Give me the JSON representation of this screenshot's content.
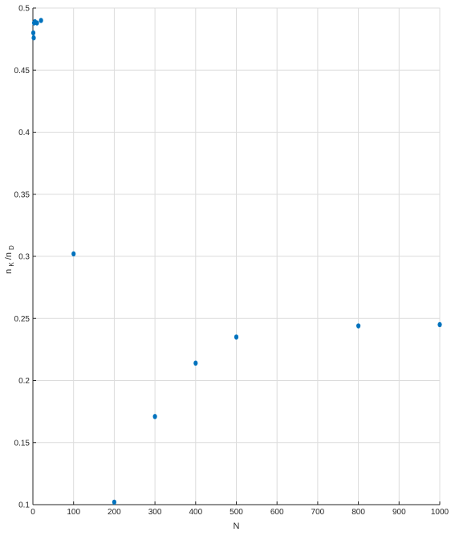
{
  "chart_data": {
    "type": "scatter",
    "title": "",
    "xlabel": "N",
    "ylabel_main": "n",
    "ylabel_sub1": "K",
    "ylabel_sep": "/n",
    "ylabel_sub2": "D",
    "xlim": [
      0,
      1000
    ],
    "ylim": [
      0.1,
      0.5
    ],
    "xticks": [
      0,
      100,
      200,
      300,
      400,
      500,
      600,
      700,
      800,
      900,
      1000
    ],
    "xtick_labels": [
      "0",
      "100",
      "200",
      "300",
      "400",
      "500",
      "600",
      "700",
      "800",
      "900",
      "1000"
    ],
    "yticks": [
      0.1,
      0.15,
      0.2,
      0.25,
      0.3,
      0.35,
      0.4,
      0.45,
      0.5
    ],
    "ytick_labels": [
      "0.1",
      "0.15",
      "0.2",
      "0.25",
      "0.3",
      "0.35",
      "0.4",
      "0.45",
      "0.5"
    ],
    "grid": true,
    "marker_color": "#0072BD",
    "series": [
      {
        "x": [
          1,
          2,
          3,
          5,
          10,
          20,
          100,
          200,
          300,
          400,
          500,
          800,
          1000
        ],
        "y": [
          0.48,
          0.476,
          0.488,
          0.489,
          0.488,
          0.49,
          0.302,
          0.102,
          0.171,
          0.214,
          0.235,
          0.244,
          0.245
        ]
      }
    ]
  }
}
